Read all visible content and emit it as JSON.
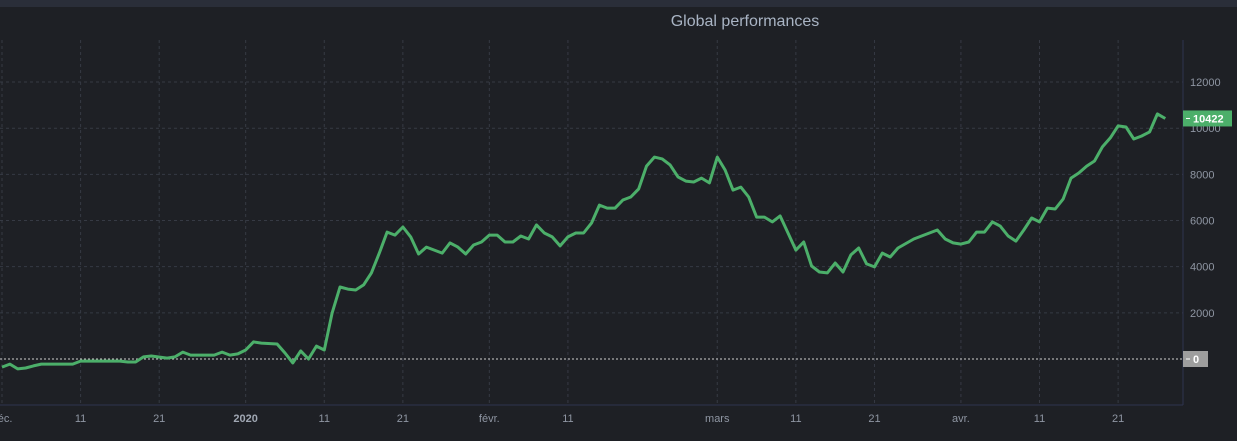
{
  "chart_data": {
    "type": "line",
    "title": "Global performances",
    "xlabel": "",
    "ylabel": "",
    "ylim": [
      -1900,
      13800
    ],
    "yticks": [
      0,
      2000,
      4000,
      6000,
      8000,
      10000,
      12000
    ],
    "ytick_labels": [
      "0",
      "2000",
      "4000",
      "6000",
      "8000",
      "10000",
      "12000"
    ],
    "xticks": [
      {
        "date": "2019-12-01",
        "label": "déc."
      },
      {
        "date": "2019-12-11",
        "label": "11"
      },
      {
        "date": "2019-12-21",
        "label": "21"
      },
      {
        "date": "2020-01-01",
        "label": "2020",
        "bold": true
      },
      {
        "date": "2020-01-11",
        "label": "11"
      },
      {
        "date": "2020-01-21",
        "label": "21"
      },
      {
        "date": "2020-02-01",
        "label": "févr."
      },
      {
        "date": "2020-02-11",
        "label": "11"
      },
      {
        "date": "2020-03-01",
        "label": "mars"
      },
      {
        "date": "2020-03-11",
        "label": "11"
      },
      {
        "date": "2020-03-21",
        "label": "21"
      },
      {
        "date": "2020-04-01",
        "label": "avr."
      },
      {
        "date": "2020-04-11",
        "label": "11"
      },
      {
        "date": "2020-04-21",
        "label": "21"
      }
    ],
    "grid": true,
    "last_value_label": "10422",
    "zero_label": "0",
    "colors": {
      "line": "#4caf6a",
      "last_badge": "#4caf6a",
      "zero_badge": "#9e9e9e",
      "background": "#1e2025"
    },
    "series": [
      {
        "points": [
          [
            "2019-12-01",
            -350
          ],
          [
            "2019-12-02",
            -220
          ],
          [
            "2019-12-03",
            -430
          ],
          [
            "2019-12-04",
            -390
          ],
          [
            "2019-12-05",
            -300
          ],
          [
            "2019-12-06",
            -220
          ],
          [
            "2019-12-10",
            -220
          ],
          [
            "2019-12-11",
            -90
          ],
          [
            "2019-12-16",
            -90
          ],
          [
            "2019-12-17",
            -130
          ],
          [
            "2019-12-18",
            -130
          ],
          [
            "2019-12-19",
            90
          ],
          [
            "2019-12-20",
            130
          ],
          [
            "2019-12-22",
            40
          ],
          [
            "2019-12-23",
            90
          ],
          [
            "2019-12-24",
            300
          ],
          [
            "2019-12-25",
            170
          ],
          [
            "2019-12-26",
            170
          ],
          [
            "2019-12-28",
            170
          ],
          [
            "2019-12-29",
            300
          ],
          [
            "2019-12-30",
            170
          ],
          [
            "2019-12-31",
            220
          ],
          [
            "2020-01-01",
            390
          ],
          [
            "2020-01-02",
            740
          ],
          [
            "2020-01-03",
            690
          ],
          [
            "2020-01-05",
            650
          ],
          [
            "2020-01-06",
            260
          ],
          [
            "2020-01-07",
            -170
          ],
          [
            "2020-01-08",
            350
          ],
          [
            "2020-01-09",
            0
          ],
          [
            "2020-01-10",
            560
          ],
          [
            "2020-01-11",
            390
          ],
          [
            "2020-01-12",
            1990
          ],
          [
            "2020-01-13",
            3120
          ],
          [
            "2020-01-14",
            3030
          ],
          [
            "2020-01-15",
            2990
          ],
          [
            "2020-01-16",
            3210
          ],
          [
            "2020-01-17",
            3730
          ],
          [
            "2020-01-18",
            4590
          ],
          [
            "2020-01-19",
            5500
          ],
          [
            "2020-01-20",
            5370
          ],
          [
            "2020-01-21",
            5720
          ],
          [
            "2020-01-22",
            5290
          ],
          [
            "2020-01-23",
            4550
          ],
          [
            "2020-01-24",
            4850
          ],
          [
            "2020-01-25",
            4720
          ],
          [
            "2020-01-26",
            4590
          ],
          [
            "2020-01-27",
            5030
          ],
          [
            "2020-01-28",
            4850
          ],
          [
            "2020-01-29",
            4550
          ],
          [
            "2020-01-30",
            4940
          ],
          [
            "2020-01-31",
            5070
          ],
          [
            "2020-02-01",
            5370
          ],
          [
            "2020-02-02",
            5370
          ],
          [
            "2020-02-03",
            5070
          ],
          [
            "2020-02-04",
            5070
          ],
          [
            "2020-02-05",
            5330
          ],
          [
            "2020-02-06",
            5200
          ],
          [
            "2020-02-07",
            5810
          ],
          [
            "2020-02-08",
            5460
          ],
          [
            "2020-02-09",
            5290
          ],
          [
            "2020-02-10",
            4900
          ],
          [
            "2020-02-11",
            5290
          ],
          [
            "2020-02-12",
            5460
          ],
          [
            "2020-02-13",
            5460
          ],
          [
            "2020-02-14",
            5890
          ],
          [
            "2020-02-15",
            6670
          ],
          [
            "2020-02-16",
            6540
          ],
          [
            "2020-02-17",
            6540
          ],
          [
            "2020-02-18",
            6890
          ],
          [
            "2020-02-19",
            7020
          ],
          [
            "2020-02-20",
            7370
          ],
          [
            "2020-02-21",
            8360
          ],
          [
            "2020-02-22",
            8750
          ],
          [
            "2020-02-23",
            8670
          ],
          [
            "2020-02-24",
            8410
          ],
          [
            "2020-02-25",
            7890
          ],
          [
            "2020-02-26",
            7710
          ],
          [
            "2020-02-27",
            7670
          ],
          [
            "2020-02-28",
            7840
          ],
          [
            "2020-02-29",
            7630
          ],
          [
            "2020-03-01",
            8750
          ],
          [
            "2020-03-02",
            8190
          ],
          [
            "2020-03-03",
            7320
          ],
          [
            "2020-03-04",
            7450
          ],
          [
            "2020-03-05",
            7020
          ],
          [
            "2020-03-06",
            6150
          ],
          [
            "2020-03-07",
            6150
          ],
          [
            "2020-03-08",
            5940
          ],
          [
            "2020-03-09",
            6200
          ],
          [
            "2020-03-10",
            5460
          ],
          [
            "2020-03-11",
            4720
          ],
          [
            "2020-03-12",
            5070
          ],
          [
            "2020-03-13",
            4030
          ],
          [
            "2020-03-14",
            3770
          ],
          [
            "2020-03-15",
            3730
          ],
          [
            "2020-03-16",
            4160
          ],
          [
            "2020-03-17",
            3770
          ],
          [
            "2020-03-18",
            4510
          ],
          [
            "2020-03-19",
            4810
          ],
          [
            "2020-03-20",
            4120
          ],
          [
            "2020-03-21",
            3990
          ],
          [
            "2020-03-22",
            4590
          ],
          [
            "2020-03-23",
            4420
          ],
          [
            "2020-03-24",
            4810
          ],
          [
            "2020-03-26",
            5200
          ],
          [
            "2020-03-27",
            5330
          ],
          [
            "2020-03-29",
            5590
          ],
          [
            "2020-03-30",
            5200
          ],
          [
            "2020-03-31",
            5030
          ],
          [
            "2020-04-01",
            4980
          ],
          [
            "2020-04-02",
            5070
          ],
          [
            "2020-04-03",
            5500
          ],
          [
            "2020-04-04",
            5500
          ],
          [
            "2020-04-05",
            5940
          ],
          [
            "2020-04-06",
            5760
          ],
          [
            "2020-04-07",
            5330
          ],
          [
            "2020-04-08",
            5110
          ],
          [
            "2020-04-09",
            5590
          ],
          [
            "2020-04-10",
            6110
          ],
          [
            "2020-04-11",
            5940
          ],
          [
            "2020-04-12",
            6540
          ],
          [
            "2020-04-13",
            6500
          ],
          [
            "2020-04-14",
            6930
          ],
          [
            "2020-04-15",
            7840
          ],
          [
            "2020-04-16",
            8060
          ],
          [
            "2020-04-17",
            8360
          ],
          [
            "2020-04-18",
            8580
          ],
          [
            "2020-04-19",
            9190
          ],
          [
            "2020-04-20",
            9580
          ],
          [
            "2020-04-21",
            10100
          ],
          [
            "2020-04-22",
            10050
          ],
          [
            "2020-04-23",
            9530
          ],
          [
            "2020-04-24",
            9660
          ],
          [
            "2020-04-25",
            9840
          ],
          [
            "2020-04-26",
            10620
          ],
          [
            "2020-04-27",
            10422
          ]
        ]
      }
    ]
  }
}
